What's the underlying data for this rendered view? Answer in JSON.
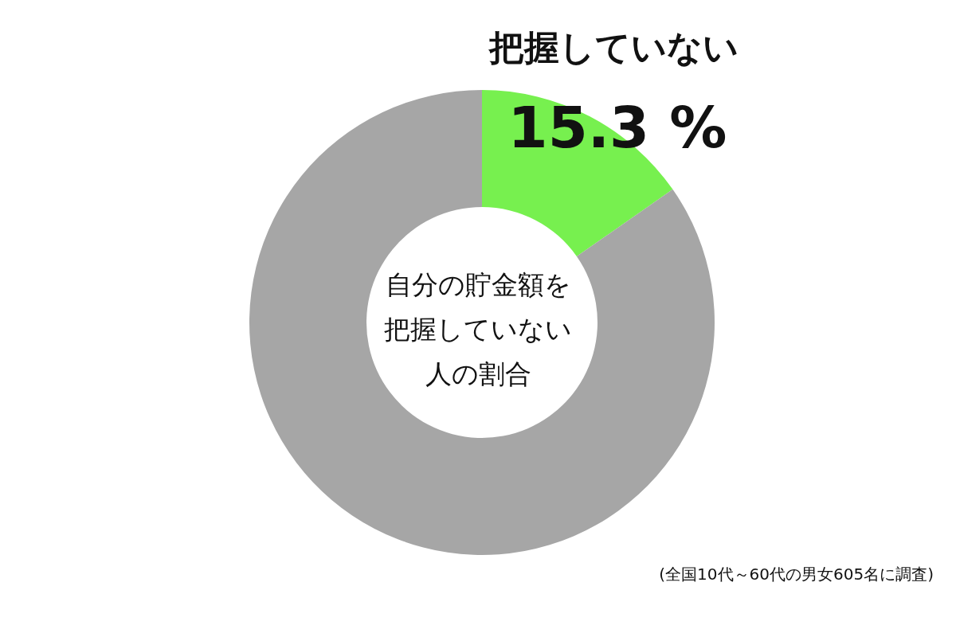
{
  "chart_data": {
    "type": "donut",
    "title": "自分の貯金額を把握していない人の割合",
    "categories": [
      "把握していない",
      null
    ],
    "values": [
      15.3,
      84.7
    ],
    "colors": [
      "#77f04f",
      "#a6a6a6"
    ],
    "value_labels": [
      "15.3 %",
      null
    ],
    "annotations": [
      "(全国10代～60代の男女605名に調査)"
    ]
  }
}
